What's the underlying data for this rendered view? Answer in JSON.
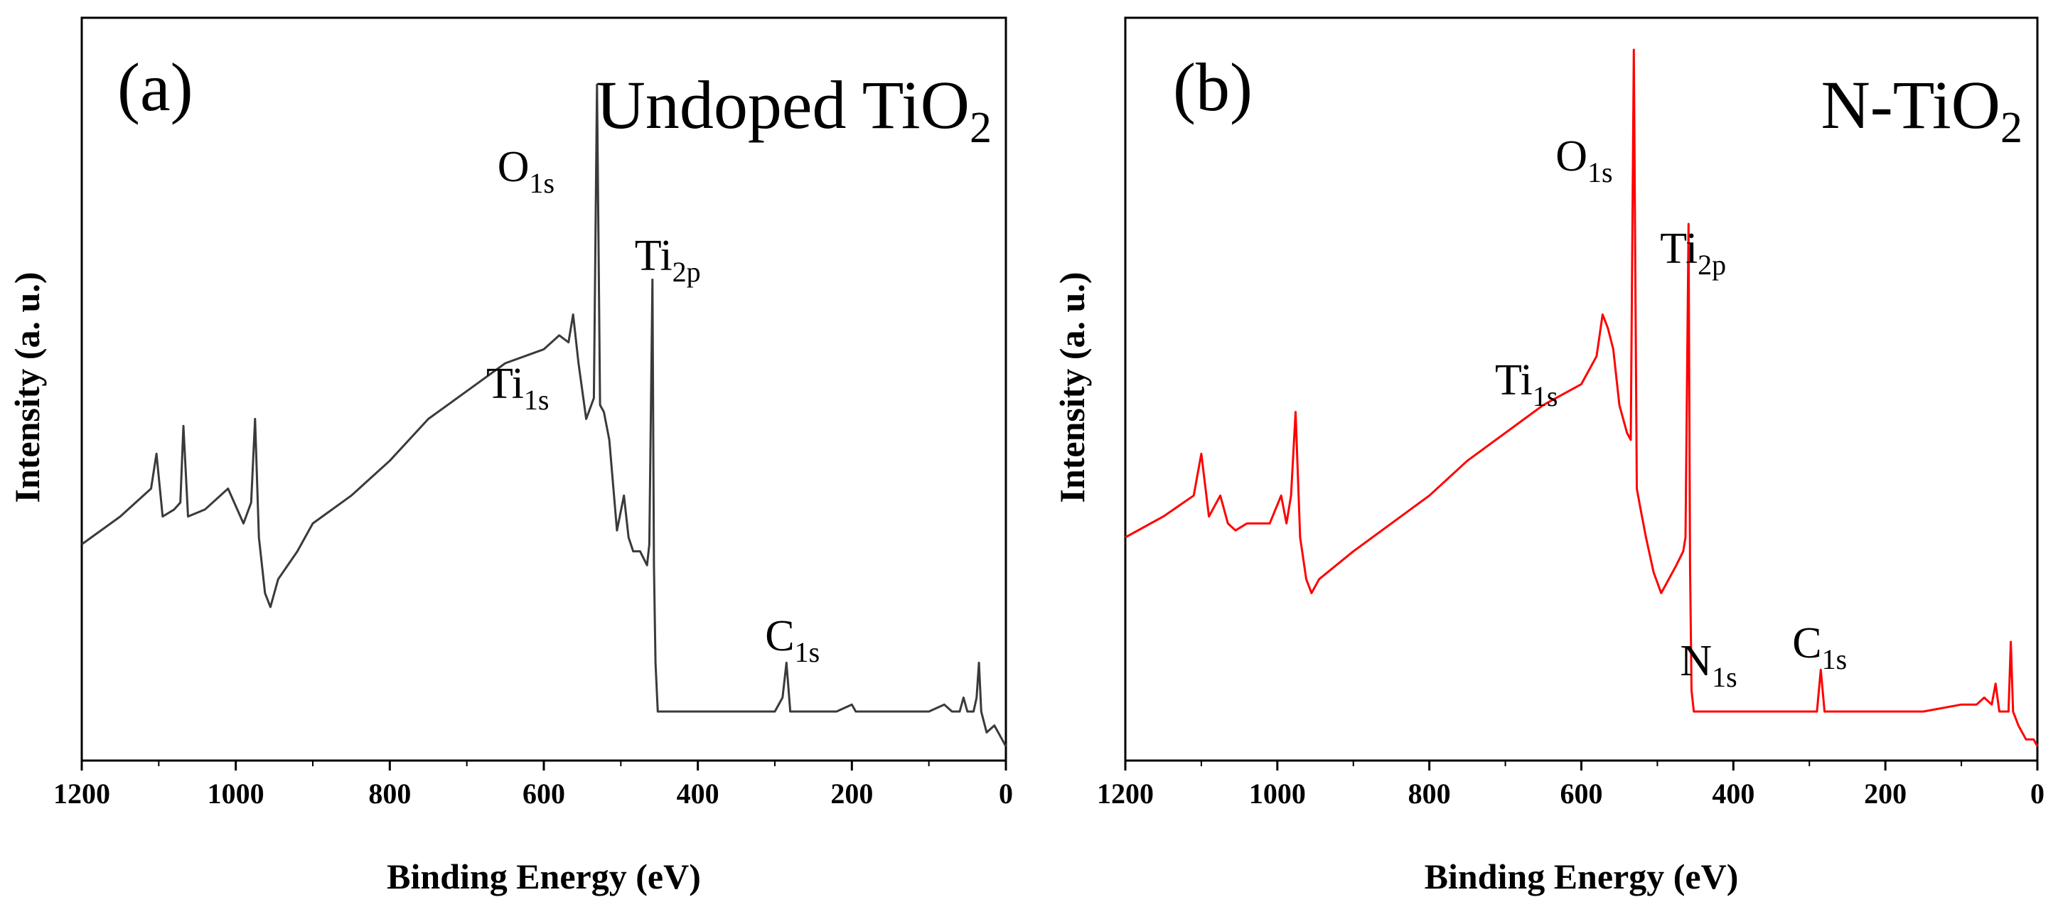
{
  "chart_data": [
    {
      "type": "line",
      "panel_label": "(a)",
      "title": {
        "main": "Undoped TiO",
        "sub": "2"
      },
      "xlabel": "Binding Energy (eV)",
      "ylabel": "Intensity (a. u.)",
      "xlim": [
        1200,
        0
      ],
      "x_reversed": true,
      "ylim": [
        0,
        100
      ],
      "y_ticks_shown": false,
      "xticks": [
        "1200",
        "1000",
        "800",
        "600",
        "400",
        "200",
        "0"
      ],
      "line_color": "#3a3a3a",
      "grid": false,
      "peaks": [
        {
          "main": "O",
          "sub": "1s",
          "x": 531
        },
        {
          "main": "Ti",
          "sub": "2p",
          "x": 459
        },
        {
          "main": "Ti",
          "sub": "1s",
          "x": 564
        },
        {
          "main": "C",
          "sub": "1s",
          "x": 285
        }
      ],
      "series": [
        {
          "x": [
            1200,
            1150,
            1110,
            1103,
            1095,
            1080,
            1072,
            1068,
            1062,
            1040,
            1010,
            990,
            980,
            975,
            970,
            962,
            955,
            945,
            920,
            900,
            850,
            800,
            750,
            700,
            650,
            600,
            580,
            568,
            562,
            555,
            545,
            535,
            531,
            527,
            522,
            515,
            505,
            496,
            490,
            484,
            475,
            466,
            463,
            459,
            457,
            455,
            452,
            450,
            440,
            420,
            400,
            350,
            300,
            290,
            285,
            280,
            270,
            250,
            220,
            200,
            195,
            190,
            150,
            100,
            80,
            70,
            60,
            55,
            50,
            42,
            38,
            35,
            32,
            25,
            15,
            5,
            0
          ],
          "y": [
            29,
            33,
            37,
            42,
            33,
            34,
            35,
            46,
            33,
            34,
            37,
            32,
            35,
            47,
            30,
            22,
            20,
            24,
            28,
            32,
            36,
            41,
            47,
            51,
            55,
            57,
            59,
            58,
            62,
            55,
            47,
            50,
            95,
            49,
            48,
            44,
            31,
            36,
            30,
            28,
            28,
            26,
            29,
            67,
            26,
            12,
            5,
            5,
            5,
            5,
            5,
            5,
            5,
            7,
            12,
            5,
            5,
            5,
            5,
            6,
            5,
            5,
            5,
            5,
            6,
            5,
            5,
            7,
            5,
            5,
            7,
            12,
            5,
            2,
            3,
            1,
            0
          ]
        }
      ]
    },
    {
      "type": "line",
      "panel_label": "(b)",
      "title": {
        "main": "N-TiO",
        "sub": "2"
      },
      "xlabel": "Binding Energy (eV)",
      "ylabel": "Intensity (a. u.)",
      "xlim": [
        1200,
        0
      ],
      "x_reversed": true,
      "ylim": [
        0,
        100
      ],
      "y_ticks_shown": false,
      "xticks": [
        "1200",
        "1000",
        "800",
        "600",
        "400",
        "200",
        "0"
      ],
      "line_color": "#ff0000",
      "grid": false,
      "peaks": [
        {
          "main": "O",
          "sub": "1s",
          "x": 531
        },
        {
          "main": "Ti",
          "sub": "2p",
          "x": 459
        },
        {
          "main": "Ti",
          "sub": "1s",
          "x": 564
        },
        {
          "main": "N",
          "sub": "1s",
          "x": 400
        },
        {
          "main": "C",
          "sub": "1s",
          "x": 285
        }
      ],
      "series": [
        {
          "x": [
            1200,
            1150,
            1110,
            1100,
            1090,
            1075,
            1065,
            1055,
            1040,
            1010,
            995,
            988,
            982,
            976,
            970,
            962,
            955,
            945,
            900,
            850,
            800,
            750,
            700,
            650,
            600,
            580,
            572,
            565,
            558,
            550,
            540,
            535,
            531,
            527,
            522,
            515,
            505,
            495,
            485,
            475,
            466,
            463,
            459,
            457,
            455,
            452,
            450,
            440,
            420,
            400,
            350,
            300,
            290,
            285,
            280,
            270,
            250,
            200,
            150,
            100,
            80,
            70,
            60,
            55,
            50,
            42,
            38,
            35,
            32,
            25,
            15,
            5,
            0
          ],
          "y": [
            30,
            33,
            36,
            42,
            33,
            36,
            32,
            31,
            32,
            32,
            36,
            32,
            36,
            48,
            30,
            24,
            22,
            24,
            28,
            32,
            36,
            41,
            45,
            49,
            52,
            56,
            62,
            60,
            57,
            49,
            45,
            44,
            100,
            37,
            34,
            30,
            25,
            22,
            24,
            26,
            28,
            30,
            75,
            26,
            8,
            5,
            5,
            5,
            5,
            5,
            5,
            5,
            5,
            11,
            5,
            5,
            5,
            5,
            5,
            6,
            6,
            7,
            6,
            9,
            5,
            5,
            5,
            15,
            5,
            3,
            1,
            1,
            0
          ]
        }
      ]
    }
  ]
}
